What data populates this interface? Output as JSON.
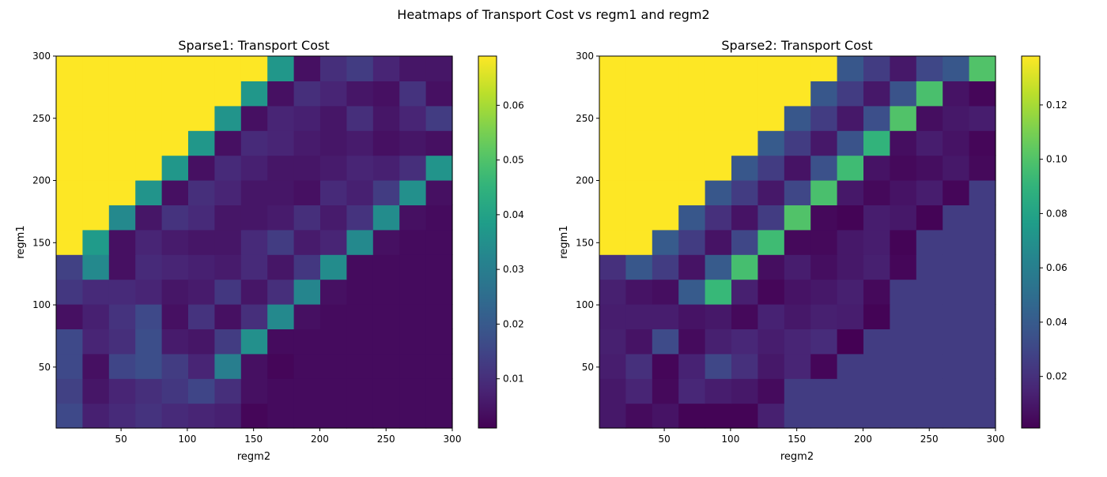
{
  "figure": {
    "suptitle": "Heatmaps of Transport Cost vs regm1 and regm2"
  },
  "chart_data": [
    {
      "type": "heatmap",
      "title": "Sparse1: Transport Cost",
      "xlabel": "regm2",
      "ylabel": "regm1",
      "xlim": [
        1,
        300
      ],
      "ylim": [
        1,
        300
      ],
      "xticks": [
        50,
        100,
        150,
        200,
        250,
        300
      ],
      "yticks": [
        50,
        100,
        150,
        200,
        250,
        300
      ],
      "colormap": "viridis",
      "value_range": [
        0.001,
        0.069
      ],
      "colorbar_ticks": [
        0.01,
        0.02,
        0.03,
        0.04,
        0.05,
        0.06
      ],
      "colorbar_tick_labels": [
        "0.01",
        "0.02",
        "0.03",
        "0.04",
        "0.05",
        "0.06"
      ],
      "grid_size": [
        15,
        15
      ],
      "row_order": "bottom-to-top",
      "values": [
        [
          0.016,
          0.007,
          0.009,
          0.011,
          0.009,
          0.008,
          0.007,
          0.002,
          0.003,
          0.003,
          0.003,
          0.003,
          0.003,
          0.003,
          0.003
        ],
        [
          0.014,
          0.005,
          0.008,
          0.01,
          0.012,
          0.015,
          0.01,
          0.004,
          0.003,
          0.003,
          0.003,
          0.003,
          0.003,
          0.003,
          0.003
        ],
        [
          0.016,
          0.004,
          0.015,
          0.017,
          0.013,
          0.008,
          0.03,
          0.004,
          0.002,
          0.003,
          0.003,
          0.003,
          0.003,
          0.003,
          0.003
        ],
        [
          0.016,
          0.008,
          0.01,
          0.017,
          0.006,
          0.005,
          0.013,
          0.035,
          0.003,
          0.003,
          0.003,
          0.003,
          0.003,
          0.003,
          0.003
        ],
        [
          0.004,
          0.007,
          0.011,
          0.016,
          0.004,
          0.011,
          0.004,
          0.01,
          0.033,
          0.004,
          0.003,
          0.003,
          0.003,
          0.003,
          0.003
        ],
        [
          0.012,
          0.009,
          0.009,
          0.008,
          0.005,
          0.006,
          0.012,
          0.005,
          0.01,
          0.032,
          0.004,
          0.003,
          0.003,
          0.003,
          0.003
        ],
        [
          0.014,
          0.033,
          0.004,
          0.009,
          0.008,
          0.007,
          0.006,
          0.009,
          0.005,
          0.012,
          0.034,
          0.003,
          0.003,
          0.003,
          0.003
        ],
        [
          0.069,
          0.038,
          0.004,
          0.008,
          0.006,
          0.005,
          0.005,
          0.009,
          0.013,
          0.006,
          0.008,
          0.033,
          0.004,
          0.003,
          0.003
        ],
        [
          0.069,
          0.069,
          0.033,
          0.005,
          0.011,
          0.009,
          0.005,
          0.005,
          0.006,
          0.01,
          0.006,
          0.011,
          0.034,
          0.004,
          0.003
        ],
        [
          0.069,
          0.069,
          0.069,
          0.036,
          0.004,
          0.01,
          0.008,
          0.005,
          0.005,
          0.004,
          0.009,
          0.007,
          0.013,
          0.035,
          0.004
        ],
        [
          0.069,
          0.069,
          0.069,
          0.069,
          0.037,
          0.004,
          0.009,
          0.007,
          0.005,
          0.005,
          0.006,
          0.008,
          0.007,
          0.01,
          0.036
        ],
        [
          0.069,
          0.069,
          0.069,
          0.069,
          0.069,
          0.037,
          0.004,
          0.009,
          0.008,
          0.006,
          0.005,
          0.006,
          0.004,
          0.005,
          0.004
        ],
        [
          0.069,
          0.069,
          0.069,
          0.069,
          0.069,
          0.069,
          0.036,
          0.004,
          0.008,
          0.007,
          0.005,
          0.01,
          0.005,
          0.008,
          0.013
        ],
        [
          0.069,
          0.069,
          0.069,
          0.069,
          0.069,
          0.069,
          0.069,
          0.037,
          0.004,
          0.01,
          0.008,
          0.005,
          0.004,
          0.011,
          0.004
        ],
        [
          0.069,
          0.069,
          0.069,
          0.069,
          0.069,
          0.069,
          0.069,
          0.069,
          0.037,
          0.004,
          0.01,
          0.013,
          0.008,
          0.005,
          0.005
        ]
      ]
    },
    {
      "type": "heatmap",
      "title": "Sparse2: Transport Cost",
      "xlabel": "regm2",
      "ylabel": "regm1",
      "xlim": [
        1,
        300
      ],
      "ylim": [
        1,
        300
      ],
      "xticks": [
        50,
        100,
        150,
        200,
        250,
        300
      ],
      "yticks": [
        50,
        100,
        150,
        200,
        250,
        300
      ],
      "colormap": "viridis",
      "value_range": [
        0.001,
        0.138
      ],
      "colorbar_ticks": [
        0.02,
        0.04,
        0.06,
        0.08,
        0.1,
        0.12
      ],
      "colorbar_tick_labels": [
        "0.02",
        "0.04",
        "0.06",
        "0.08",
        "0.10",
        "0.12"
      ],
      "grid_size": [
        15,
        15
      ],
      "row_order": "bottom-to-top",
      "values": [
        [
          0.01,
          0.005,
          0.008,
          0.002,
          0.002,
          0.002,
          0.013,
          0.025,
          0.025,
          0.025,
          0.025,
          0.025,
          0.025,
          0.025,
          0.025
        ],
        [
          0.01,
          0.015,
          0.004,
          0.016,
          0.012,
          0.01,
          0.005,
          0.025,
          0.025,
          0.025,
          0.025,
          0.025,
          0.025,
          0.025,
          0.025
        ],
        [
          0.012,
          0.02,
          0.003,
          0.014,
          0.03,
          0.02,
          0.01,
          0.015,
          0.003,
          0.025,
          0.025,
          0.025,
          0.025,
          0.025,
          0.025
        ],
        [
          0.013,
          0.008,
          0.032,
          0.005,
          0.013,
          0.016,
          0.012,
          0.015,
          0.018,
          0.001,
          0.025,
          0.025,
          0.025,
          0.025,
          0.025
        ],
        [
          0.012,
          0.012,
          0.012,
          0.008,
          0.01,
          0.004,
          0.014,
          0.01,
          0.013,
          0.012,
          0.002,
          0.025,
          0.025,
          0.025,
          0.025
        ],
        [
          0.013,
          0.008,
          0.006,
          0.04,
          0.093,
          0.013,
          0.003,
          0.008,
          0.01,
          0.013,
          0.004,
          0.025,
          0.025,
          0.025,
          0.025
        ],
        [
          0.02,
          0.038,
          0.025,
          0.008,
          0.04,
          0.097,
          0.006,
          0.012,
          0.006,
          0.01,
          0.013,
          0.003,
          0.025,
          0.025,
          0.025
        ],
        [
          0.138,
          0.138,
          0.04,
          0.025,
          0.008,
          0.03,
          0.095,
          0.004,
          0.004,
          0.01,
          0.012,
          0.002,
          0.025,
          0.025,
          0.025
        ],
        [
          0.138,
          0.138,
          0.138,
          0.038,
          0.02,
          0.008,
          0.025,
          0.1,
          0.004,
          0.002,
          0.012,
          0.01,
          0.002,
          0.025,
          0.025
        ],
        [
          0.138,
          0.138,
          0.138,
          0.138,
          0.038,
          0.025,
          0.01,
          0.03,
          0.098,
          0.01,
          0.004,
          0.008,
          0.012,
          0.003,
          0.025
        ],
        [
          0.138,
          0.138,
          0.138,
          0.138,
          0.138,
          0.038,
          0.025,
          0.008,
          0.035,
          0.095,
          0.008,
          0.004,
          0.006,
          0.01,
          0.004
        ],
        [
          0.138,
          0.138,
          0.138,
          0.138,
          0.138,
          0.138,
          0.04,
          0.025,
          0.01,
          0.036,
          0.09,
          0.006,
          0.012,
          0.008,
          0.003
        ],
        [
          0.138,
          0.138,
          0.138,
          0.138,
          0.138,
          0.138,
          0.138,
          0.038,
          0.025,
          0.01,
          0.034,
          0.1,
          0.006,
          0.01,
          0.012
        ],
        [
          0.138,
          0.138,
          0.138,
          0.138,
          0.138,
          0.138,
          0.138,
          0.138,
          0.038,
          0.025,
          0.01,
          0.036,
          0.098,
          0.008,
          0.003
        ],
        [
          0.138,
          0.138,
          0.138,
          0.138,
          0.138,
          0.138,
          0.138,
          0.138,
          0.138,
          0.038,
          0.025,
          0.01,
          0.03,
          0.038,
          0.1
        ]
      ]
    }
  ]
}
